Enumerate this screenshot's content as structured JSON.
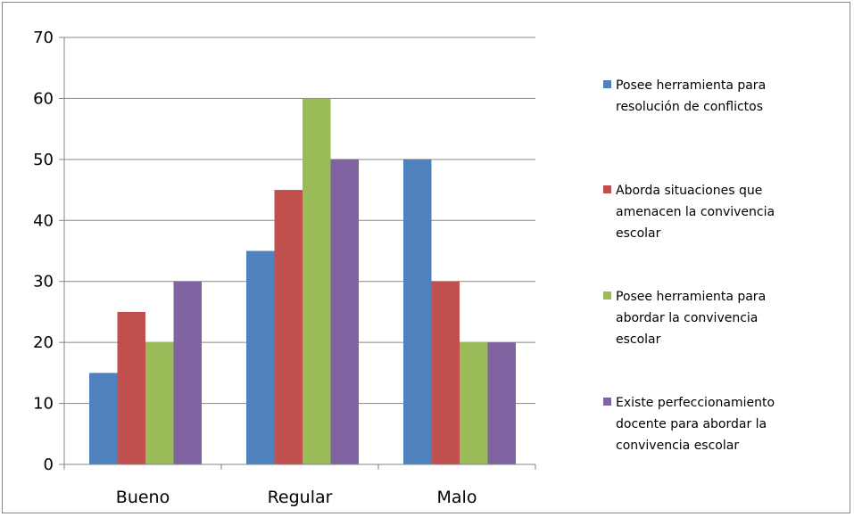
{
  "chart_data": {
    "type": "bar",
    "title": "",
    "xlabel": "",
    "ylabel": "",
    "categories": [
      "Bueno",
      "Regular",
      "Malo"
    ],
    "ylim": [
      0,
      70
    ],
    "yticks": [
      0,
      10,
      20,
      30,
      40,
      50,
      60,
      70
    ],
    "grid": true,
    "legend_position": "right",
    "series": [
      {
        "name": "Posee herramienta para resolución de conflictos",
        "legend_lines": [
          "Posee herramienta para",
          "resolución de conflictos"
        ],
        "color": "#4F81BD",
        "values": [
          15,
          35,
          50
        ]
      },
      {
        "name": "Aborda situaciones que amenacen la convivencia escolar",
        "legend_lines": [
          "Aborda situaciones que",
          "amenacen la convivencia",
          "escolar"
        ],
        "color": "#C0504D",
        "values": [
          25,
          45,
          30
        ]
      },
      {
        "name": "Posee herramienta para abordar la convivencia escolar",
        "legend_lines": [
          "Posee herramienta para",
          "abordar la convivencia",
          "escolar"
        ],
        "color": "#9BBB59",
        "values": [
          20,
          60,
          20
        ]
      },
      {
        "name": "Existe perfeccionamiento docente para abordar la convivencia escolar",
        "legend_lines": [
          "Existe perfeccionamiento",
          "docente para abordar la",
          "convivencia escolar"
        ],
        "color": "#8064A2",
        "values": [
          30,
          50,
          20
        ]
      }
    ]
  }
}
